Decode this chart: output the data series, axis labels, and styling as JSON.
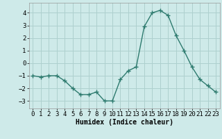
{
  "x": [
    0,
    1,
    2,
    3,
    4,
    5,
    6,
    7,
    8,
    9,
    10,
    11,
    12,
    13,
    14,
    15,
    16,
    17,
    18,
    19,
    20,
    21,
    22,
    23
  ],
  "y": [
    -1.0,
    -1.1,
    -1.0,
    -1.0,
    -1.4,
    -2.0,
    -2.5,
    -2.5,
    -2.3,
    -3.0,
    -3.0,
    -1.3,
    -0.6,
    -0.3,
    2.9,
    4.0,
    4.2,
    3.8,
    2.2,
    1.0,
    -0.3,
    -1.3,
    -1.8,
    -2.3
  ],
  "line_color": "#2d7a6e",
  "marker": "+",
  "marker_size": 4,
  "bg_color": "#ceeae9",
  "grid_color": "#aed0ce",
  "xlabel": "Humidex (Indice chaleur)",
  "xlim": [
    -0.5,
    23.5
  ],
  "ylim": [
    -3.6,
    4.8
  ],
  "yticks": [
    -3,
    -2,
    -1,
    0,
    1,
    2,
    3,
    4
  ],
  "xtick_labels": [
    "0",
    "1",
    "2",
    "3",
    "4",
    "5",
    "6",
    "7",
    "8",
    "9",
    "10",
    "11",
    "12",
    "13",
    "14",
    "15",
    "16",
    "17",
    "18",
    "19",
    "20",
    "21",
    "22",
    "23"
  ],
  "xlabel_fontsize": 7,
  "tick_fontsize": 6.5,
  "line_width": 1.0,
  "marker_color": "#2d7a6e"
}
